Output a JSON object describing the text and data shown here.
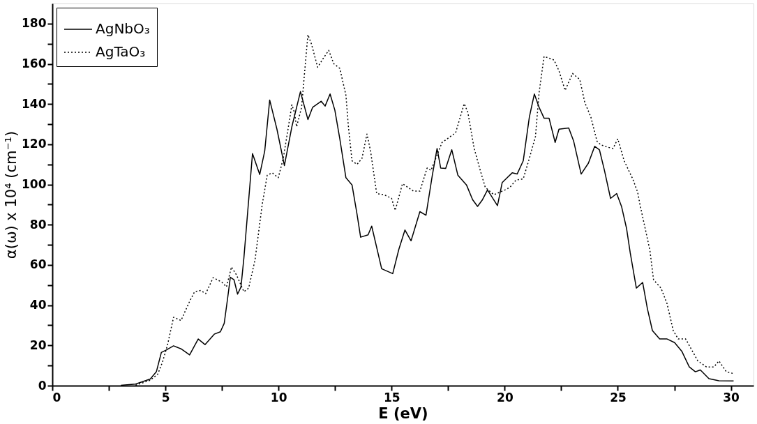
{
  "chart_data": {
    "type": "line",
    "xlabel": "E (eV)",
    "ylabel": "α(ω) x 10⁴ (cm⁻¹)",
    "xlim": [
      0,
      31
    ],
    "ylim": [
      0,
      190
    ],
    "xticks": [
      0,
      {
        "value": 2.5,
        "label": null
      },
      5,
      {
        "value": 7.5,
        "label": null
      },
      10,
      {
        "value": 12.5,
        "label": null
      },
      15,
      {
        "value": 17.5,
        "label": null
      },
      20,
      {
        "value": 22.5,
        "label": null
      },
      25,
      {
        "value": 27.5,
        "label": null
      },
      30
    ],
    "yticks": [
      0,
      {
        "value": 10,
        "label": null
      },
      20,
      {
        "value": 30,
        "label": null
      },
      40,
      {
        "value": 50,
        "label": null
      },
      60,
      {
        "value": 70,
        "label": null
      },
      80,
      {
        "value": 90,
        "label": null
      },
      100,
      {
        "value": 110,
        "label": null
      },
      120,
      {
        "value": 130,
        "label": null
      },
      140,
      {
        "value": 150,
        "label": null
      },
      160,
      {
        "value": 170,
        "label": null
      },
      180
    ],
    "grid": false,
    "legend": "top left",
    "marker": "none",
    "series": [
      {
        "name": "AgNbO₃",
        "color": "#000000",
        "line_style": "solid",
        "x": [
          3.03,
          3.68,
          4.33,
          4.6,
          4.82,
          5.04,
          5.36,
          5.69,
          6.07,
          6.45,
          6.75,
          7.16,
          7.43,
          7.6,
          7.76,
          7.87,
          8.03,
          8.19,
          8.34,
          8.47,
          8.85,
          9.17,
          9.39,
          9.61,
          9.93,
          10.26,
          10.59,
          10.97,
          11.3,
          11.51,
          11.89,
          12.06,
          12.28,
          12.49,
          12.71,
          12.98,
          13.25,
          13.47,
          13.63,
          13.96,
          14.12,
          14.56,
          15.05,
          15.32,
          15.59,
          15.86,
          16.25,
          16.52,
          16.8,
          17.01,
          17.17,
          17.39,
          17.66,
          17.93,
          18.31,
          18.58,
          18.8,
          19.02,
          19.24,
          19.68,
          19.89,
          20.33,
          20.55,
          20.82,
          21.09,
          21.31,
          21.52,
          21.74,
          21.96,
          22.23,
          22.4,
          22.83,
          23.05,
          23.38,
          23.7,
          23.98,
          24.19,
          24.41,
          24.68,
          24.95,
          25.17,
          25.39,
          25.55,
          25.82,
          26.1,
          26.31,
          26.53,
          26.85,
          27.18,
          27.51,
          27.83,
          28.16,
          28.43,
          28.65,
          29.03,
          29.47,
          30.12
        ],
        "values": [
          0.2,
          0.8,
          3.3,
          6.9,
          16.5,
          17.7,
          19.8,
          18.3,
          15.3,
          23.2,
          20.4,
          25.6,
          26.8,
          31,
          44.3,
          53.9,
          52.7,
          45.5,
          49,
          63.6,
          115.4,
          105,
          116.6,
          142,
          127.5,
          109.4,
          128.7,
          146.2,
          132.3,
          138.4,
          141.4,
          139,
          145,
          137,
          122.7,
          103.4,
          99.8,
          85.3,
          73.8,
          75,
          79.3,
          58.1,
          55.7,
          67.8,
          77.4,
          72,
          86.5,
          84.7,
          104.6,
          117.9,
          108.2,
          108,
          117.3,
          104.6,
          99.8,
          92.5,
          89.1,
          92.5,
          97.3,
          89.5,
          101,
          105.8,
          105.2,
          111.8,
          133.5,
          145,
          138.4,
          133,
          133,
          120.9,
          127.5,
          128.1,
          121.5,
          105.2,
          110.6,
          119,
          117.2,
          107,
          93.1,
          95.5,
          88.9,
          78,
          66,
          48.5,
          51.3,
          38.2,
          27.4,
          23.2,
          23.2,
          21.4,
          17.1,
          9.3,
          6.9,
          7.8,
          3.5,
          2.4,
          2.3
        ]
      },
      {
        "name": "AgTaO₃",
        "color": "#000000",
        "line_style": "dotted",
        "x": [
          3.68,
          4.33,
          4.66,
          4.87,
          5.09,
          5.36,
          5.69,
          6.07,
          6.29,
          6.56,
          6.78,
          7.11,
          7.49,
          7.7,
          7.92,
          8.14,
          8.47,
          8.68,
          8.96,
          9.28,
          9.5,
          9.72,
          9.99,
          10.21,
          10.42,
          10.59,
          10.7,
          10.8,
          11.02,
          11.13,
          11.3,
          11.46,
          11.73,
          12.0,
          12.22,
          12.44,
          12.71,
          12.98,
          13.09,
          13.25,
          13.47,
          13.69,
          13.91,
          14.07,
          14.34,
          14.67,
          15.0,
          15.16,
          15.48,
          15.97,
          16.25,
          16.57,
          16.74,
          17.23,
          17.83,
          18.21,
          18.37,
          18.65,
          18.92,
          19.14,
          19.52,
          20.01,
          20.23,
          20.5,
          20.82,
          21.09,
          21.36,
          21.52,
          21.74,
          22.18,
          22.4,
          22.67,
          23.0,
          23.32,
          23.54,
          23.81,
          24.08,
          24.25,
          24.57,
          24.79,
          25.0,
          25.28,
          25.66,
          25.88,
          25.98,
          26.26,
          26.42,
          26.58,
          26.91,
          27.18,
          27.45,
          27.67,
          28.0,
          28.27,
          28.54,
          28.92,
          29.25,
          29.47,
          29.8,
          30.12
        ],
        "values": [
          0.2,
          2.7,
          5.7,
          11.7,
          20.1,
          34,
          32.4,
          41.9,
          46.7,
          47.3,
          45.7,
          53.7,
          51.5,
          49.1,
          59,
          55.1,
          46.7,
          48.5,
          62.4,
          90.1,
          104.6,
          105.8,
          103.4,
          113,
          127.5,
          139.6,
          136,
          128.7,
          138.4,
          152.8,
          174.5,
          169.7,
          158.3,
          163.1,
          166.7,
          160.1,
          157.7,
          144.4,
          128.7,
          111.8,
          110,
          113,
          125.1,
          116.6,
          95.5,
          94.9,
          93.1,
          87.1,
          100.4,
          96.7,
          96.7,
          108.2,
          107,
          120.9,
          125.7,
          140.2,
          135.9,
          117.9,
          107,
          98.6,
          94.9,
          97.3,
          98.6,
          102.2,
          102.8,
          113,
          123.9,
          145.6,
          163.7,
          161.9,
          156.5,
          146.8,
          155.2,
          152.2,
          140.8,
          133.5,
          121.5,
          119.7,
          118.5,
          117.9,
          122.7,
          111.8,
          102.8,
          96.1,
          90,
          75.6,
          67.2,
          52.7,
          48.5,
          40.7,
          27.4,
          23.2,
          23.2,
          17.7,
          12.3,
          9.3,
          9.3,
          12.3,
          6.9,
          6.0
        ]
      }
    ]
  }
}
